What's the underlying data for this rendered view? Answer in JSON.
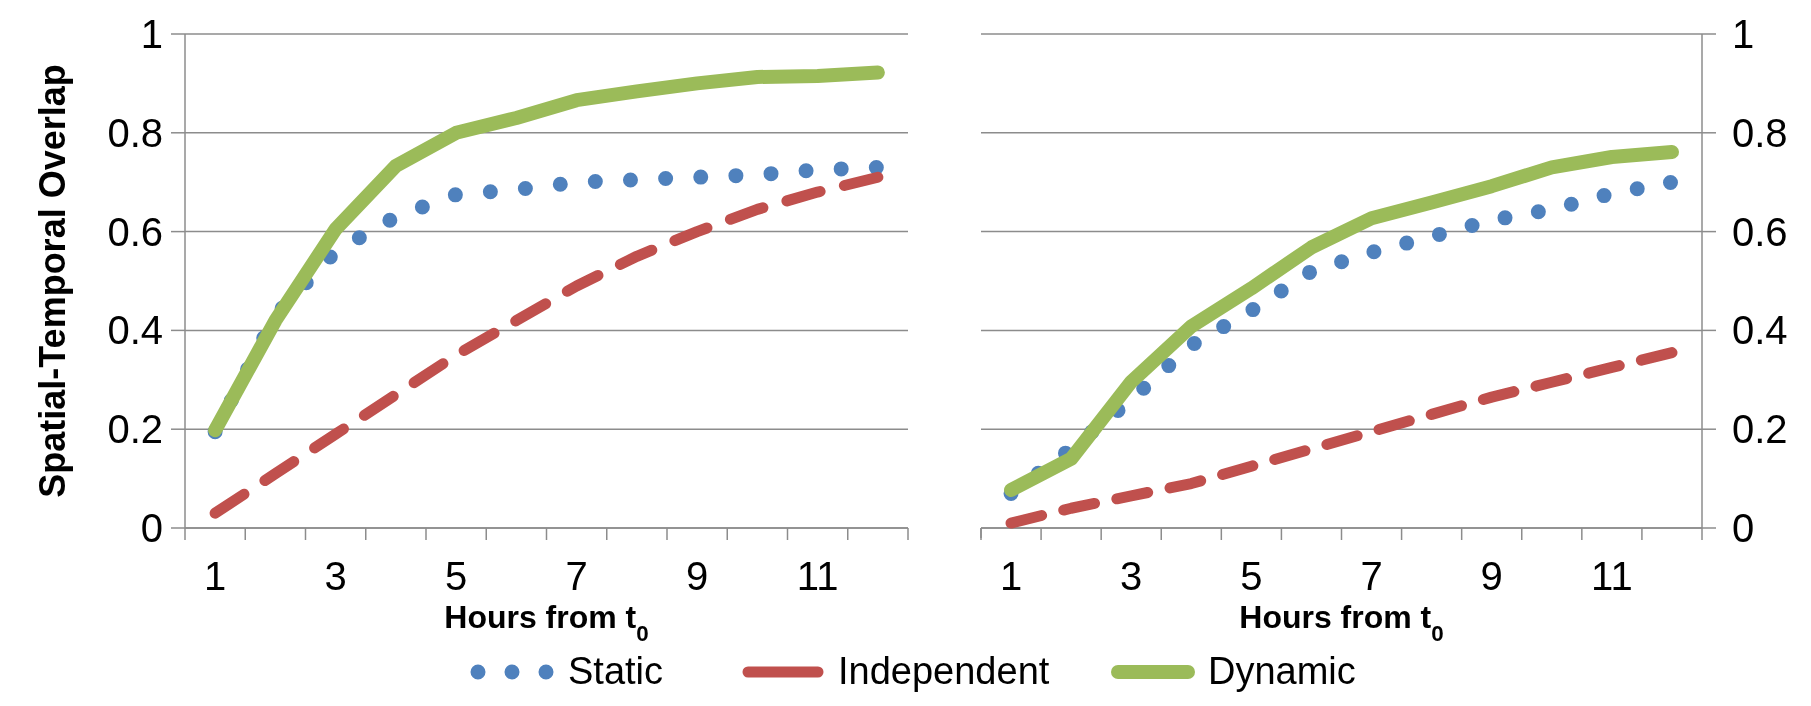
{
  "chart_data": [
    {
      "type": "line",
      "ylabel": "Spatial-Temporal Overlap",
      "xlabel": "Hours from t$_{0}$",
      "categories": [
        "1",
        null,
        "3",
        null,
        "5",
        null,
        "7",
        null,
        "9",
        null,
        "11",
        null
      ],
      "ylim": [
        0,
        1
      ],
      "yticks": [
        0,
        0.2,
        0.4,
        0.6,
        0.8,
        1
      ],
      "grid": "y",
      "legend": "bottom",
      "series": [
        {
          "name": "Static",
          "color": "#4f81bd",
          "line_style": "dotted",
          "values": [
            0.195,
            0.43,
            0.56,
            0.63,
            0.675,
            0.685,
            0.7,
            0.705,
            0.71,
            0.715,
            0.725,
            0.73
          ]
        },
        {
          "name": "Independent",
          "color": "#c0504d",
          "line_style": "dashed",
          "values": [
            0.03,
            0.11,
            0.19,
            0.27,
            0.35,
            0.42,
            0.49,
            0.55,
            0.6,
            0.645,
            0.68,
            0.71
          ]
        },
        {
          "name": "Dynamic",
          "color": "#9bbb59",
          "line_style": "solid",
          "values": [
            0.198,
            0.42,
            0.605,
            0.733,
            0.8,
            0.83,
            0.866,
            0.884,
            0.9,
            0.913,
            0.915,
            0.922
          ]
        }
      ]
    },
    {
      "type": "line",
      "xlabel": "Hours from t$_{0}$",
      "categories": [
        "1",
        null,
        "3",
        null,
        "5",
        null,
        "7",
        null,
        "9",
        null,
        "11",
        null
      ],
      "y2lim": [
        0,
        1
      ],
      "y2ticks": [
        0,
        0.2,
        0.4,
        0.6,
        0.8,
        1
      ],
      "grid": "y",
      "series": [
        {
          "color": "#4f81bd",
          "line_style": "dotted",
          "axis": "y2",
          "values": [
            0.07,
            0.16,
            0.26,
            0.37,
            0.44,
            0.52,
            0.558,
            0.59,
            0.623,
            0.645,
            0.677,
            0.7
          ]
        },
        {
          "color": "#c0504d",
          "line_style": "dashed",
          "axis": "y2",
          "values": [
            0.01,
            0.04,
            0.065,
            0.09,
            0.125,
            0.16,
            0.195,
            0.23,
            0.265,
            0.295,
            0.325,
            0.355
          ]
        },
        {
          "color": "#9bbb59",
          "line_style": "solid",
          "axis": "y2",
          "values": [
            0.077,
            0.14,
            0.296,
            0.408,
            0.485,
            0.568,
            0.627,
            0.659,
            0.692,
            0.73,
            0.751,
            0.761
          ]
        }
      ]
    }
  ]
}
